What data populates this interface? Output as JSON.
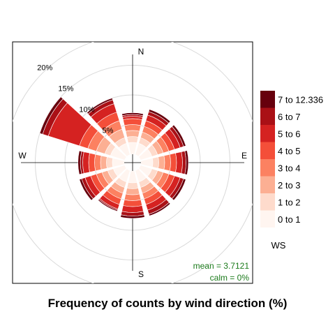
{
  "chart_data": {
    "type": "windrose",
    "title": "Frequency of counts by wind direction (%)",
    "directions": [
      "N",
      "NNE",
      "ENE",
      "E",
      "ESE",
      "SSE",
      "S",
      "SSW",
      "WSW",
      "W",
      "WNW",
      "NNW"
    ],
    "compass_labels": [
      "N",
      "E",
      "S",
      "W"
    ],
    "radial_axis": {
      "ticks": [
        5,
        10,
        15,
        20
      ],
      "tick_labels": [
        "5%",
        "10%",
        "15%",
        "20%"
      ],
      "max": 20,
      "unit": "%"
    },
    "legend": {
      "title": "WS",
      "placement": "right",
      "bins": [
        "0 to 1",
        "1 to 2",
        "2 to 3",
        "3 to 4",
        "4 to 5",
        "5 to 6",
        "6 to 7",
        "7 to 12.336"
      ],
      "colors": [
        "#FFF5F0",
        "#FEDBCC",
        "#FCAF93",
        "#FC8161",
        "#F44F39",
        "#D52221",
        "#AA1016",
        "#67000D"
      ]
    },
    "series_cumulative_percent": [
      {
        "direction": "N",
        "values": [
          2.0,
          3.0,
          4.0,
          5.0,
          6.0,
          6.4,
          6.7,
          7.0
        ]
      },
      {
        "direction": "NNE",
        "values": [
          2.0,
          3.0,
          4.0,
          5.0,
          6.0,
          7.0,
          7.6,
          8.0
        ]
      },
      {
        "direction": "ENE",
        "values": [
          2.0,
          3.0,
          4.0,
          5.0,
          6.0,
          7.0,
          7.6,
          8.0
        ]
      },
      {
        "direction": "E",
        "values": [
          2.0,
          3.0,
          4.0,
          5.0,
          6.0,
          7.0,
          7.6,
          8.0
        ]
      },
      {
        "direction": "ESE",
        "values": [
          2.0,
          3.0,
          4.0,
          5.0,
          6.0,
          7.0,
          7.6,
          8.0
        ]
      },
      {
        "direction": "SSE",
        "values": [
          2.0,
          3.0,
          4.0,
          5.0,
          6.0,
          7.0,
          7.7,
          8.0
        ]
      },
      {
        "direction": "S",
        "values": [
          2.0,
          3.0,
          4.0,
          5.0,
          6.0,
          7.0,
          7.6,
          8.0
        ]
      },
      {
        "direction": "SSW",
        "values": [
          2.0,
          3.0,
          4.0,
          5.0,
          6.0,
          6.8,
          7.0,
          7.2
        ]
      },
      {
        "direction": "WSW",
        "values": [
          2.0,
          3.0,
          4.0,
          5.0,
          6.0,
          7.0,
          7.6,
          8.0
        ]
      },
      {
        "direction": "W",
        "values": [
          2.0,
          3.0,
          4.0,
          5.0,
          6.0,
          7.0,
          7.4,
          7.8
        ]
      },
      {
        "direction": "WNW",
        "values": [
          2.5,
          3.5,
          5.0,
          6.5,
          8.0,
          13.5,
          14.5,
          15.0
        ]
      },
      {
        "direction": "NNW",
        "values": [
          2.0,
          3.0,
          4.5,
          6.0,
          7.5,
          9.0,
          9.7,
          10.0
        ]
      }
    ],
    "annotations": {
      "mean": "mean = 3.7121",
      "calm": "calm = 0%"
    },
    "grid": true
  }
}
